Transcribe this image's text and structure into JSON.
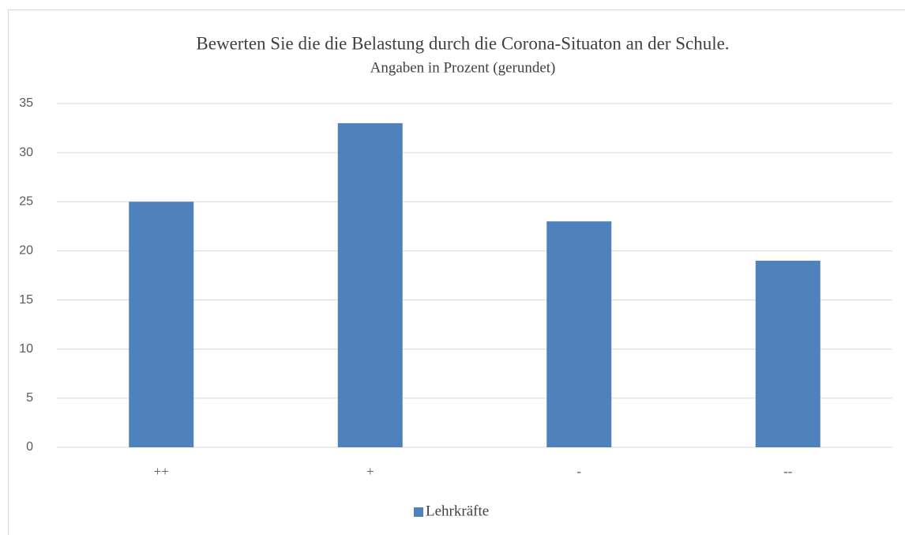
{
  "chart_data": {
    "type": "bar",
    "title": "Bewerten Sie die die Belastung durch die Corona-Situaton an der Schule.",
    "subtitle": "Angaben in Prozent (gerundet)",
    "categories": [
      "++",
      "+",
      "-",
      "--"
    ],
    "series": [
      {
        "name": "Lehrkräfte",
        "color": "#4f81bd",
        "values": [
          25,
          33,
          23,
          19
        ]
      }
    ],
    "ylim": [
      0,
      35
    ],
    "yticks": [
      0,
      5,
      10,
      15,
      20,
      25,
      30,
      35
    ],
    "grid": true,
    "legend": "bottom"
  }
}
